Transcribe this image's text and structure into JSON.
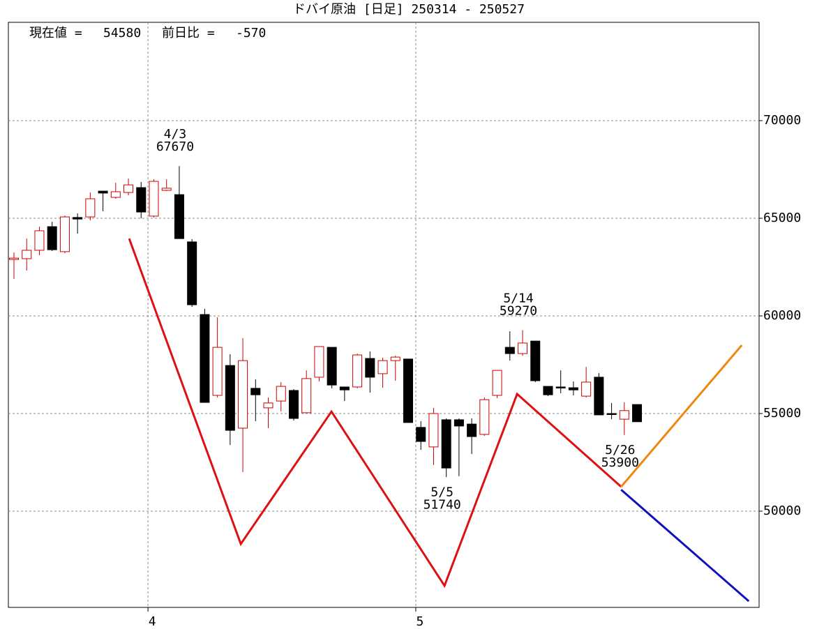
{
  "chart_data": {
    "type": "candlestick",
    "title": "ドバイ原油 [日足] 250314 - 250527",
    "current_label": "現在値 =",
    "current_value": 54580,
    "change_label": "前日比 =",
    "change_value": -570,
    "categories": [
      null,
      null,
      null,
      null,
      null,
      null,
      null,
      null,
      null,
      null,
      null,
      null,
      null,
      null,
      null,
      null,
      null,
      null,
      null,
      null,
      null,
      null,
      null,
      null,
      null,
      null,
      null,
      null,
      null,
      null,
      null,
      null,
      null,
      null,
      null,
      null,
      null,
      null,
      null,
      null,
      null,
      null,
      null,
      null,
      null,
      null,
      null,
      null,
      null,
      null
    ],
    "open": [
      62890,
      62930,
      63360,
      64570,
      63290,
      65040,
      65070,
      66390,
      66070,
      66320,
      66570,
      65110,
      66430,
      66210,
      63790,
      60070,
      55930,
      57460,
      54250,
      56290,
      55290,
      55640,
      56180,
      55040,
      56860,
      58390,
      56360,
      56360,
      57820,
      57040,
      57710,
      57790,
      54290,
      53290,
      54680,
      54680,
      54460,
      53930,
      55930,
      58390,
      58070,
      58710,
      56390,
      56360,
      56320,
      55890,
      56860,
      55000,
      54710,
      55460
    ],
    "high": [
      63250,
      63960,
      64570,
      64820,
      65140,
      65250,
      66320,
      66390,
      66820,
      67040,
      66860,
      67000,
      67000,
      67670,
      63930,
      60360,
      59930,
      58040,
      58860,
      56750,
      55820,
      56610,
      56250,
      57210,
      58430,
      58390,
      56360,
      58070,
      58180,
      57860,
      57960,
      57790,
      54610,
      55290,
      54750,
      54750,
      54750,
      55820,
      57210,
      59210,
      59270,
      58710,
      56390,
      57210,
      56640,
      57390,
      57070,
      55540,
      55570,
      55460
    ],
    "low": [
      61890,
      62320,
      63110,
      63320,
      63210,
      64210,
      64890,
      65360,
      66000,
      66180,
      65000,
      65040,
      66390,
      63960,
      60460,
      55570,
      55820,
      53390,
      52000,
      54610,
      54250,
      55110,
      54640,
      55040,
      56640,
      56290,
      55640,
      56290,
      56070,
      56320,
      56680,
      54540,
      53140,
      52360,
      51740,
      51790,
      52930,
      53860,
      55790,
      57710,
      57960,
      56610,
      55890,
      56040,
      55930,
      55820,
      54930,
      54710,
      53900,
      54580
    ],
    "close": [
      62960,
      63360,
      64360,
      63390,
      65070,
      64960,
      66000,
      66290,
      66360,
      66710,
      65320,
      66890,
      66540,
      63960,
      60570,
      55570,
      58390,
      54140,
      57710,
      55960,
      55540,
      56390,
      54750,
      56790,
      58430,
      56460,
      56210,
      58000,
      56860,
      57710,
      57890,
      54540,
      53570,
      55000,
      52210,
      54360,
      53820,
      55710,
      57210,
      58070,
      58610,
      56680,
      55960,
      56320,
      56210,
      56610,
      54930,
      54960,
      55150,
      54580
    ],
    "up_color": "#cc0000",
    "down_color": "#000000",
    "annotations": [
      {
        "label": "4/3",
        "value": 67670,
        "index": 13
      },
      {
        "label": "5/5",
        "value": 51740,
        "index": 34
      },
      {
        "label": "5/14",
        "value": 59270,
        "index": 40
      },
      {
        "label": "5/26",
        "value": 53900,
        "index": 48
      }
    ],
    "lines": [
      {
        "color": "#dd1111",
        "x": [
          9.06,
          17.84,
          24.97,
          33.86,
          39.57,
          47.75
        ],
        "values": [
          63960,
          48320,
          55100,
          46180,
          56000,
          51250
        ]
      },
      {
        "color": "#ee8811",
        "x": [
          47.75,
          57.24
        ],
        "values": [
          51250,
          58500
        ]
      },
      {
        "color": "#1111bb",
        "x": [
          47.75,
          57.79
        ],
        "values": [
          51100,
          45390
        ]
      }
    ],
    "xlim": [
      -0.44,
      58.6
    ],
    "xticks": [
      {
        "value": 10.54,
        "label": "4"
      },
      {
        "value": 31.6,
        "label": "5"
      }
    ],
    "ylim": [
      45000,
      75000
    ],
    "yticks": [
      50000,
      55000,
      60000,
      65000,
      70000
    ],
    "grid": true
  }
}
